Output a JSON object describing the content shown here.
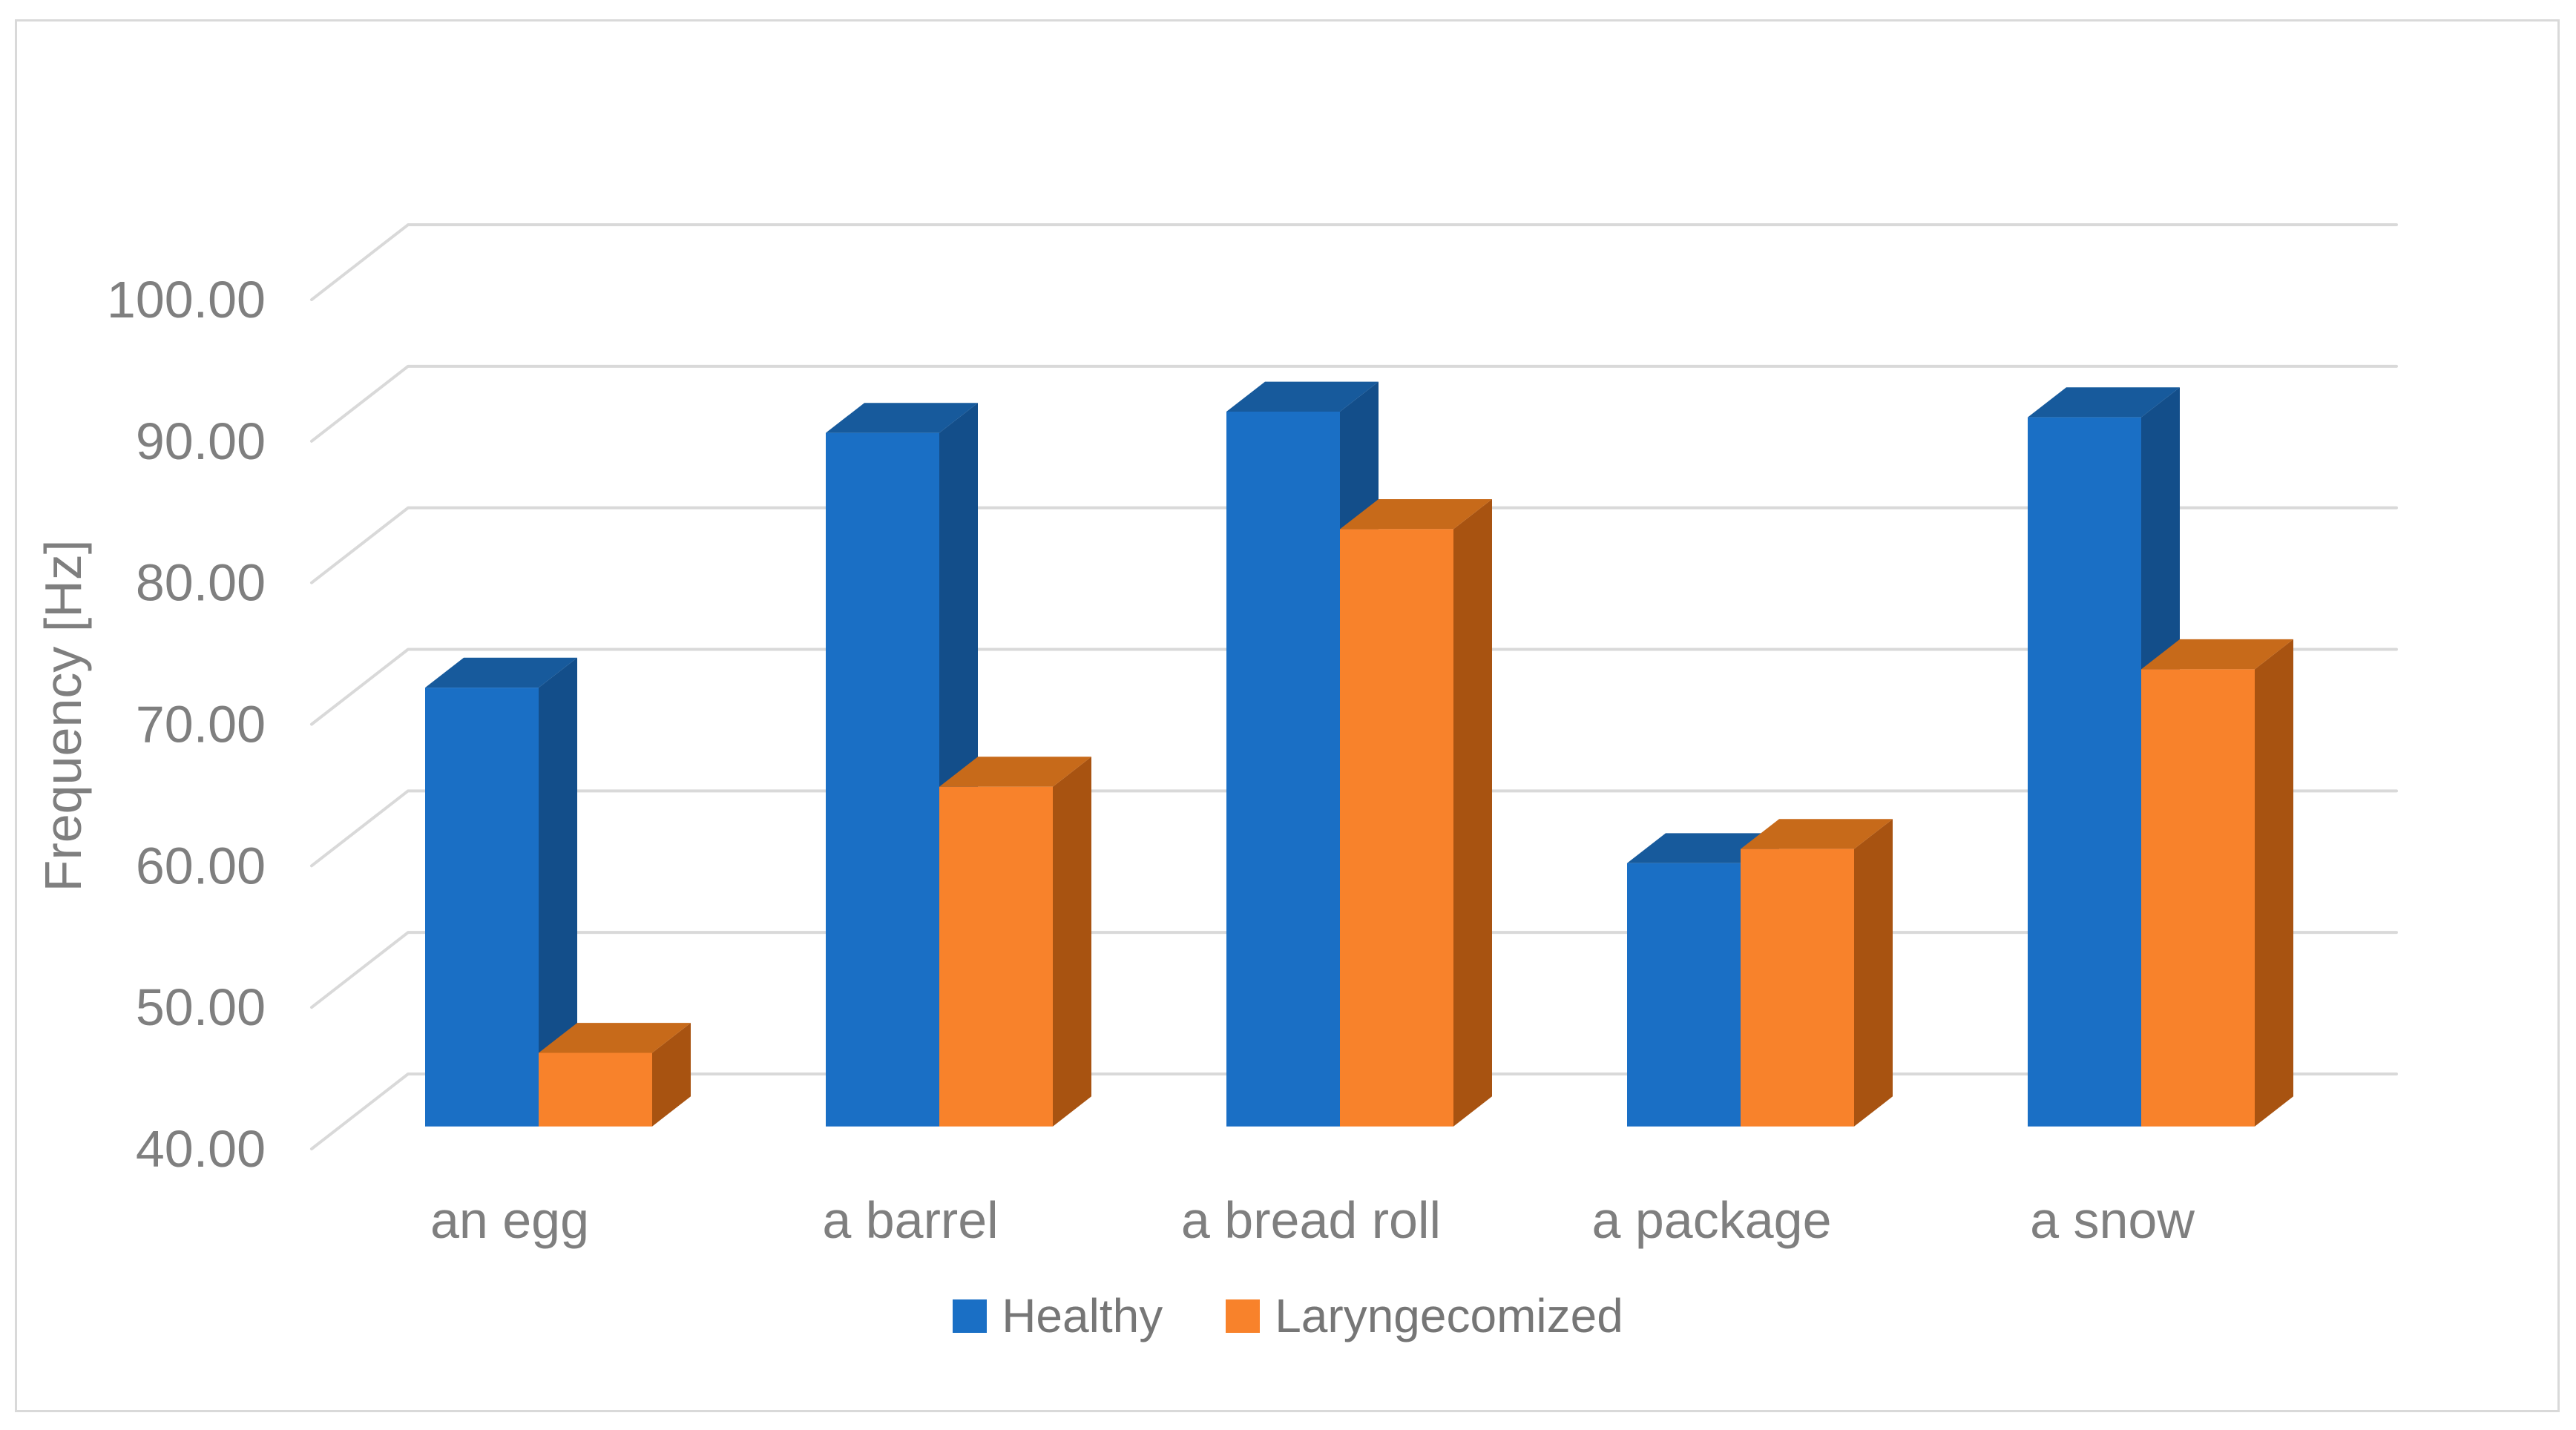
{
  "figure": {
    "background": "#FFFFFF",
    "border_color": "#D9D9D9"
  },
  "chart_data": {
    "type": "bar",
    "projection": "3d-clustered-column",
    "title": "",
    "xlabel": "",
    "ylabel": "Frequency [Hz]",
    "categories": [
      "an egg",
      "a barrel",
      "a bread roll",
      "a package",
      "a snow"
    ],
    "series": [
      {
        "name": "Healthy",
        "color": "#1A6FC5",
        "color_side": "#134E8A",
        "color_top": "#175A9C",
        "values": [
          71.0,
          89.0,
          90.5,
          58.6,
          90.1
        ]
      },
      {
        "name": "Laryngecomized",
        "color": "#F8822B",
        "color_side": "#A85311",
        "color_top": "#C76A1A",
        "values": [
          45.2,
          64.0,
          82.2,
          59.6,
          72.3
        ]
      }
    ],
    "y_axis": {
      "min": 40,
      "max": 100,
      "step": 10,
      "ticks": [
        40,
        50,
        60,
        70,
        80,
        90,
        100
      ],
      "tick_labels": [
        "40.00",
        "50.00",
        "60.00",
        "70.00",
        "80.00",
        "90.00",
        "100.00"
      ]
    },
    "grid": true,
    "gridline_color": "#D9D9D9",
    "text_color": "#7F7F7F",
    "legend": {
      "position": "bottom",
      "items": [
        "Healthy",
        "Laryngecomized"
      ]
    }
  }
}
